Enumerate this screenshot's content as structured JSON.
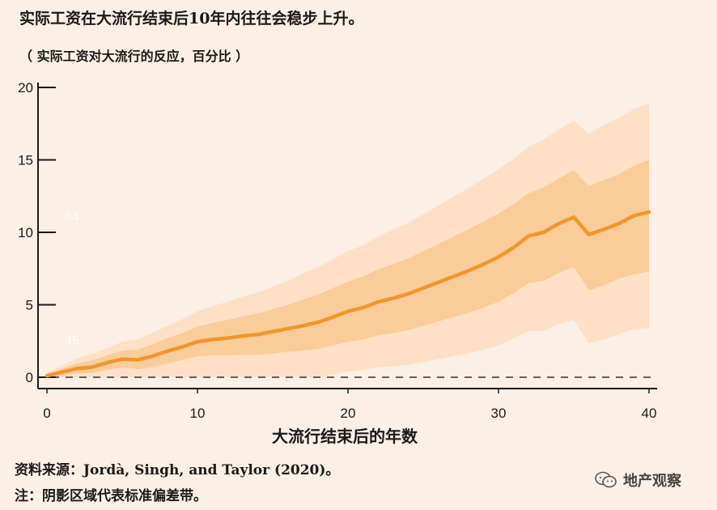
{
  "header": {
    "title": "实际工资在大流行结束后10年内往往会稳步上升。",
    "subtitle": "（ 实际工资对大流行的反应，百分比 ）"
  },
  "footer": {
    "source": "资料来源：Jordà, Singh, and Taylor (2020)。",
    "note": "注：阴影区域代表标准偏差带。"
  },
  "watermark": {
    "icon": "wechat-icon",
    "text": "地产观察"
  },
  "colors": {
    "line": "#f0962e",
    "band_inner": "#f9cc9a",
    "band_outer": "#fde0c6",
    "background": "#fcefe5"
  },
  "chart_data": {
    "type": "line",
    "title": "实际工资在大流行结束后10年内往往会稳步上升。",
    "subtitle": "（ 实际工资对大流行的反应，百分比 ）",
    "xlabel": "大流行结束后的年数",
    "ylabel": "",
    "xlim": [
      0,
      40
    ],
    "ylim": [
      0,
      20
    ],
    "xticks": [
      0,
      10,
      20,
      30,
      40
    ],
    "yticks": [
      0,
      5,
      10,
      15,
      20
    ],
    "reference_line": {
      "y": 0,
      "style": "dashed"
    },
    "faint_labels": [
      "54",
      "45"
    ],
    "x": [
      0,
      1,
      2,
      3,
      4,
      5,
      6,
      7,
      8,
      9,
      10,
      11,
      12,
      13,
      14,
      15,
      16,
      17,
      18,
      19,
      20,
      21,
      22,
      23,
      24,
      25,
      26,
      27,
      28,
      29,
      30,
      31,
      32,
      33,
      34,
      35,
      36,
      37,
      38,
      39,
      40
    ],
    "series": [
      {
        "name": "response",
        "values": [
          0.1,
          0.35,
          0.6,
          0.7,
          1.0,
          1.25,
          1.2,
          1.45,
          1.8,
          2.1,
          2.45,
          2.6,
          2.7,
          2.85,
          2.95,
          3.15,
          3.35,
          3.55,
          3.8,
          4.15,
          4.55,
          4.8,
          5.2,
          5.45,
          5.75,
          6.15,
          6.55,
          6.95,
          7.35,
          7.8,
          8.3,
          8.95,
          9.75,
          10.0,
          10.6,
          11.05,
          9.85,
          10.2,
          10.6,
          11.15,
          11.4
        ]
      },
      {
        "name": "inner_upper",
        "values": [
          0.2,
          0.6,
          0.95,
          1.15,
          1.5,
          1.85,
          1.9,
          2.25,
          2.7,
          3.05,
          3.5,
          3.75,
          3.95,
          4.2,
          4.4,
          4.7,
          5.0,
          5.35,
          5.7,
          6.15,
          6.6,
          6.95,
          7.45,
          7.8,
          8.2,
          8.7,
          9.2,
          9.7,
          10.2,
          10.75,
          11.3,
          11.95,
          12.7,
          13.1,
          13.7,
          14.3,
          13.2,
          13.6,
          14.0,
          14.6,
          15.0
        ]
      },
      {
        "name": "inner_lower",
        "values": [
          0.0,
          0.1,
          0.25,
          0.3,
          0.5,
          0.7,
          0.55,
          0.7,
          0.95,
          1.2,
          1.45,
          1.5,
          1.5,
          1.55,
          1.55,
          1.65,
          1.75,
          1.85,
          1.95,
          2.2,
          2.45,
          2.6,
          2.9,
          3.05,
          3.25,
          3.55,
          3.85,
          4.15,
          4.45,
          4.8,
          5.2,
          5.8,
          6.5,
          6.65,
          7.2,
          7.6,
          6.0,
          6.35,
          6.8,
          7.1,
          7.3
        ]
      },
      {
        "name": "outer_upper",
        "values": [
          0.3,
          0.8,
          1.3,
          1.6,
          2.0,
          2.45,
          2.6,
          3.05,
          3.55,
          4.0,
          4.55,
          4.9,
          5.2,
          5.55,
          5.85,
          6.25,
          6.65,
          7.15,
          7.6,
          8.15,
          8.7,
          9.1,
          9.7,
          10.2,
          10.65,
          11.25,
          11.85,
          12.45,
          13.05,
          13.7,
          14.35,
          15.05,
          15.9,
          16.4,
          17.1,
          17.7,
          16.8,
          17.4,
          17.9,
          18.5,
          18.9
        ]
      },
      {
        "name": "outer_lower",
        "values": [
          0.0,
          0.0,
          0.0,
          0.0,
          0.0,
          0.0,
          0.0,
          0.0,
          0.0,
          0.0,
          0.0,
          0.0,
          0.0,
          0.0,
          0.0,
          0.0,
          0.05,
          0.0,
          0.0,
          0.2,
          0.4,
          0.5,
          0.7,
          0.75,
          0.85,
          1.05,
          1.25,
          1.45,
          1.65,
          1.9,
          2.2,
          2.7,
          3.2,
          3.2,
          3.7,
          3.95,
          2.35,
          2.6,
          3.0,
          3.3,
          3.4
        ]
      }
    ]
  }
}
